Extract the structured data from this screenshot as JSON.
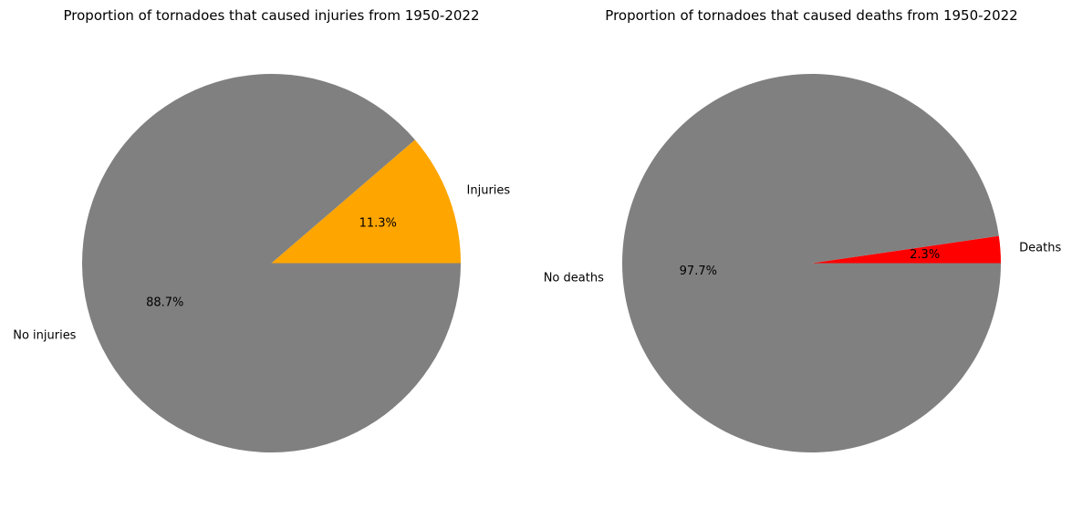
{
  "chart_data": [
    {
      "type": "pie",
      "title": "Proportion of tornadoes that caused injuries from 1950-2022",
      "slices": [
        {
          "label": "Injuries",
          "value": 11.3,
          "pct_label": "11.3%",
          "color": "#ffa500"
        },
        {
          "label": "No injuries",
          "value": 88.7,
          "pct_label": "88.7%",
          "color": "#808080"
        }
      ]
    },
    {
      "type": "pie",
      "title": "Proportion of tornadoes that caused deaths from 1950-2022",
      "slices": [
        {
          "label": "Deaths",
          "value": 2.3,
          "pct_label": "2.3%",
          "color": "#ff0000"
        },
        {
          "label": "No deaths",
          "value": 97.7,
          "pct_label": "97.7%",
          "color": "#808080"
        }
      ]
    }
  ]
}
